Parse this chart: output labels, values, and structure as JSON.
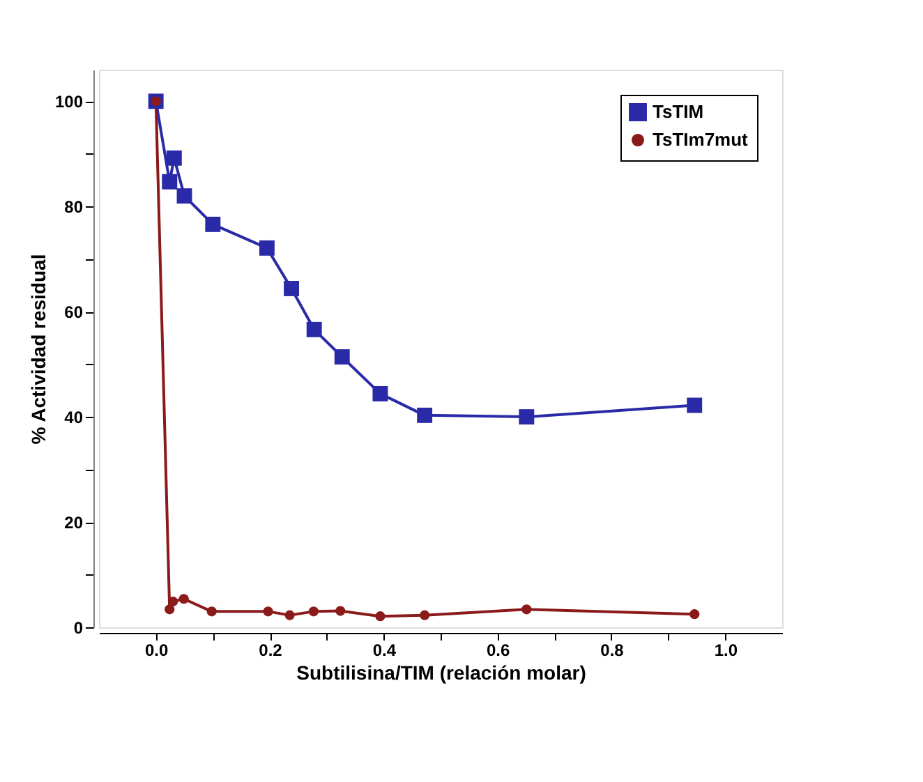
{
  "chart_data": {
    "type": "line",
    "xlabel": "Subtilisina/TIM (relación  molar)",
    "ylabel": "% Actividad residual",
    "xlim": [
      -0.1,
      1.1
    ],
    "ylim": [
      0,
      106
    ],
    "xticks": [
      {
        "value": 0,
        "label": "0.0"
      },
      {
        "value": 0.1,
        "label": null
      },
      {
        "value": 0.2,
        "label": "0.2"
      },
      {
        "value": 0.3,
        "label": null
      },
      {
        "value": 0.4,
        "label": "0.4"
      },
      {
        "value": 0.5,
        "label": null
      },
      {
        "value": 0.6,
        "label": "0.6"
      },
      {
        "value": 0.7,
        "label": null
      },
      {
        "value": 0.8,
        "label": "0.8"
      },
      {
        "value": 0.9,
        "label": null
      },
      {
        "value": 1,
        "label": "1.0"
      }
    ],
    "yticks": [
      0,
      {
        "value": 10,
        "label": null
      },
      20,
      {
        "value": 30,
        "label": null
      },
      40,
      {
        "value": 50,
        "label": null
      },
      60,
      {
        "value": 70,
        "label": null
      },
      80,
      {
        "value": 90,
        "label": null
      },
      100
    ],
    "grid": false,
    "legend": "top right",
    "series": [
      {
        "name": "TsTIM",
        "color": "#2a2aa8",
        "marker": "square",
        "x": [
          0.0,
          0.024,
          0.032,
          0.05,
          0.1,
          0.195,
          0.238,
          0.278,
          0.327,
          0.394,
          0.472,
          0.651,
          0.946
        ],
        "values": [
          100,
          84.7,
          89.2,
          82,
          76.6,
          72.1,
          64.4,
          56.6,
          51.4,
          44.4,
          40.3,
          40,
          42.2
        ]
      },
      {
        "name": "TsTIm7mut",
        "color": "#8b1a1a",
        "marker": "circle",
        "x": [
          0.0,
          0.024,
          0.03,
          0.049,
          0.098,
          0.197,
          0.235,
          0.277,
          0.324,
          0.394,
          0.472,
          0.651,
          0.946
        ],
        "values": [
          100,
          3.4,
          4.9,
          5.4,
          3,
          3,
          2.3,
          3,
          3.1,
          2.1,
          2.3,
          3.4,
          2.5
        ]
      }
    ]
  }
}
